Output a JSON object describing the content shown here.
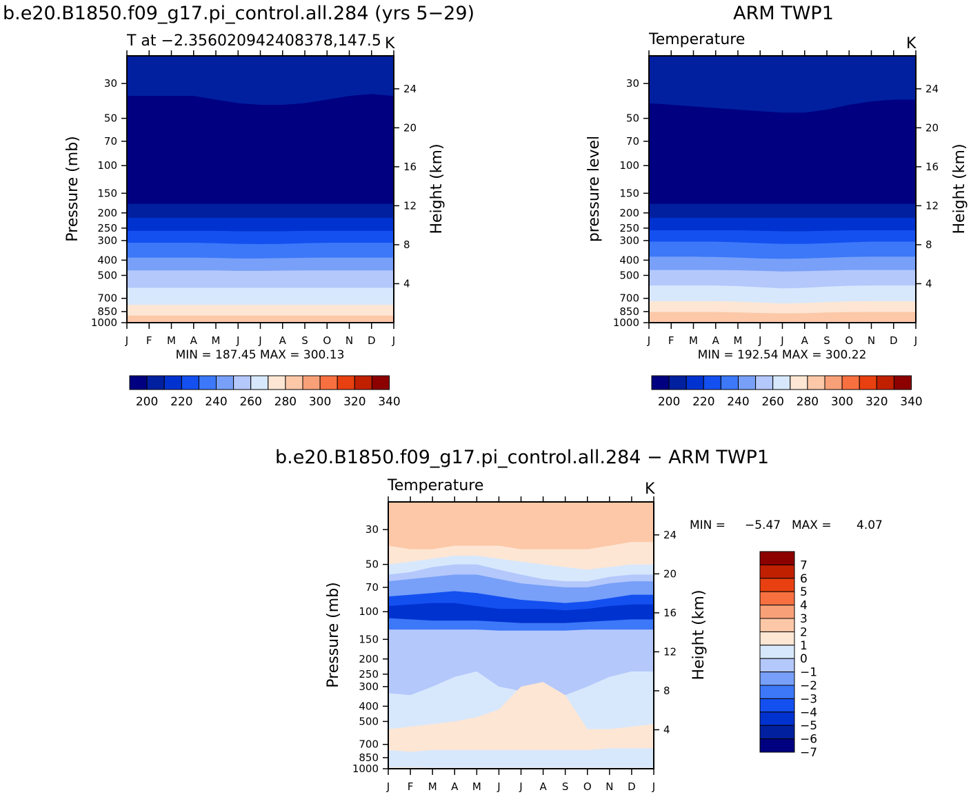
{
  "colors": [
    "#000080",
    "#0020a0",
    "#0032d0",
    "#1450f0",
    "#3c78f8",
    "#78a0f8",
    "#b4c8fc",
    "#d8e8fc",
    "#fde6d4",
    "#fcc8a8",
    "#f8a078",
    "#f87040",
    "#e84010",
    "#c02000",
    "#8c0000"
  ],
  "panels": [
    {
      "title": "b.e20.B1850.f09_g17.pi_control.all.284 (yrs 5−29)",
      "subtitle_left": "T at −2.356020942408378,147.5",
      "units": "K",
      "ylabel": "Pressure (mb)",
      "ylabel_right": "Height (km)",
      "stats": "MIN = 187.45 MAX = 300.13",
      "colorbar_labels": [
        "200",
        "220",
        "240",
        "260",
        "280",
        "300",
        "320",
        "340"
      ]
    },
    {
      "title": "ARM TWP1",
      "subtitle_left": "Temperature",
      "units": "K",
      "ylabel": "pressure level",
      "ylabel_right": "Height (km)",
      "stats": "MIN = 192.54 MAX = 300.22",
      "colorbar_labels": [
        "200",
        "220",
        "240",
        "260",
        "280",
        "300",
        "320",
        "340"
      ]
    },
    {
      "title": "b.e20.B1850.f09_g17.pi_control.all.284 − ARM TWP1",
      "subtitle_left": "Temperature",
      "units": "K",
      "ylabel": "Pressure (mb)",
      "ylabel_right": "Height (km)",
      "stats_min_label": "MIN =",
      "stats_min": "−5.47",
      "stats_max_label": "MAX =",
      "stats_max": "4.07",
      "colorbar_labels": [
        "7",
        "6",
        "5",
        "4",
        "3",
        "2",
        "1",
        "0",
        "−1",
        "−2",
        "−3",
        "−4",
        "−5",
        "−6",
        "−7"
      ]
    }
  ],
  "chart_data": [
    {
      "type": "heatmap",
      "title": "b.e20.B1850.f09_g17.pi_control.all.284 (yrs 5−29)",
      "x_tick_labels": [
        "J",
        "F",
        "M",
        "A",
        "M",
        "J",
        "J",
        "A",
        "S",
        "O",
        "N",
        "D",
        "J"
      ],
      "y_tick_labels": [
        "30",
        "50",
        "70",
        "100",
        "150",
        "200",
        "250",
        "300",
        "400",
        "500",
        "700",
        "850",
        "1000"
      ],
      "y_right_tick_labels": [
        "24",
        "20",
        "16",
        "12",
        "8",
        "4"
      ],
      "ylim": [
        1000,
        20
      ],
      "y_scale": "log",
      "min": 187.45,
      "max": 300.13,
      "levels": [
        200,
        210,
        220,
        230,
        240,
        250,
        260,
        270,
        280,
        290,
        300,
        310,
        320,
        330,
        340
      ],
      "bands": [
        {
          "value": 205,
          "upper_boundary_mb": [
            20,
            20,
            20,
            20,
            20,
            20,
            20,
            20,
            20,
            20,
            20,
            20,
            20
          ]
        },
        {
          "value": 195,
          "upper_boundary_mb": [
            36,
            36,
            36,
            36,
            38,
            40,
            41,
            41,
            40,
            38,
            36,
            35,
            36
          ]
        },
        {
          "value": 185,
          "upper_boundary_mb": [
            60,
            60,
            61,
            62,
            64,
            67,
            70,
            70,
            68,
            65,
            62,
            60,
            60
          ]
        },
        {
          "value": 195,
          "upper_boundary_mb": [
            140,
            140,
            140,
            140,
            140,
            140,
            140,
            140,
            140,
            140,
            140,
            140,
            140
          ]
        },
        {
          "value": 205,
          "upper_boundary_mb": [
            175,
            175,
            175,
            175,
            175,
            175,
            175,
            175,
            175,
            175,
            175,
            175,
            175
          ]
        },
        {
          "value": 215,
          "upper_boundary_mb": [
            215,
            215,
            215,
            215,
            215,
            215,
            215,
            215,
            215,
            215,
            215,
            215,
            215
          ]
        },
        {
          "value": 225,
          "upper_boundary_mb": [
            260,
            260,
            260,
            260,
            260,
            262,
            262,
            262,
            260,
            260,
            260,
            260,
            260
          ]
        },
        {
          "value": 235,
          "upper_boundary_mb": [
            310,
            310,
            310,
            310,
            312,
            315,
            316,
            315,
            312,
            310,
            310,
            310,
            310
          ]
        },
        {
          "value": 245,
          "upper_boundary_mb": [
            385,
            385,
            385,
            385,
            387,
            390,
            390,
            388,
            386,
            385,
            385,
            385,
            385
          ]
        },
        {
          "value": 255,
          "upper_boundary_mb": [
            465,
            465,
            465,
            465,
            465,
            468,
            468,
            466,
            465,
            465,
            465,
            465,
            465
          ]
        },
        {
          "value": 265,
          "upper_boundary_mb": [
            600,
            600,
            600,
            600,
            600,
            600,
            600,
            600,
            600,
            600,
            600,
            600,
            600
          ]
        },
        {
          "value": 275,
          "upper_boundary_mb": [
            770,
            770,
            770,
            770,
            770,
            770,
            770,
            770,
            770,
            770,
            770,
            770,
            770
          ]
        },
        {
          "value": 285,
          "upper_boundary_mb": [
            900,
            900,
            900,
            900,
            900,
            900,
            900,
            900,
            900,
            900,
            900,
            900,
            900
          ]
        }
      ]
    },
    {
      "type": "heatmap",
      "title": "ARM TWP1",
      "x_tick_labels": [
        "J",
        "F",
        "M",
        "A",
        "M",
        "J",
        "J",
        "A",
        "S",
        "O",
        "N",
        "D",
        "J"
      ],
      "y_tick_labels": [
        "30",
        "50",
        "70",
        "100",
        "150",
        "200",
        "250",
        "300",
        "400",
        "500",
        "700",
        "850",
        "1000"
      ],
      "y_right_tick_labels": [
        "24",
        "20",
        "16",
        "12",
        "8",
        "4"
      ],
      "ylim": [
        1000,
        20
      ],
      "y_scale": "log",
      "min": 192.54,
      "max": 300.22,
      "levels": [
        200,
        210,
        220,
        230,
        240,
        250,
        260,
        270,
        280,
        290,
        300,
        310,
        320,
        330,
        340
      ],
      "bands": [
        {
          "value": 205,
          "upper_boundary_mb": [
            20,
            20,
            20,
            20,
            20,
            20,
            20,
            20,
            20,
            20,
            20,
            20,
            20
          ]
        },
        {
          "value": 195,
          "upper_boundary_mb": [
            40,
            41,
            42,
            43,
            44,
            45,
            46,
            46,
            44,
            41,
            39,
            38,
            38
          ]
        },
        {
          "value": 185,
          "upper_boundary_mb": [
            63,
            64,
            65,
            66,
            67,
            70,
            76,
            82,
            76,
            68,
            64,
            62,
            62
          ]
        },
        {
          "value": 195,
          "upper_boundary_mb": [
            140,
            140,
            140,
            140,
            140,
            140,
            142,
            142,
            140,
            140,
            140,
            140,
            140
          ]
        },
        {
          "value": 205,
          "upper_boundary_mb": [
            175,
            175,
            175,
            175,
            175,
            175,
            175,
            175,
            175,
            175,
            175,
            175,
            175
          ]
        },
        {
          "value": 215,
          "upper_boundary_mb": [
            215,
            215,
            215,
            215,
            215,
            215,
            215,
            215,
            215,
            215,
            215,
            215,
            215
          ]
        },
        {
          "value": 225,
          "upper_boundary_mb": [
            258,
            258,
            258,
            258,
            258,
            260,
            262,
            262,
            260,
            258,
            258,
            258,
            258
          ]
        },
        {
          "value": 235,
          "upper_boundary_mb": [
            305,
            305,
            305,
            305,
            308,
            312,
            315,
            315,
            312,
            308,
            305,
            305,
            305
          ]
        },
        {
          "value": 245,
          "upper_boundary_mb": [
            380,
            380,
            380,
            382,
            385,
            390,
            392,
            390,
            386,
            382,
            380,
            380,
            380
          ]
        },
        {
          "value": 255,
          "upper_boundary_mb": [
            462,
            462,
            462,
            462,
            464,
            468,
            472,
            470,
            466,
            462,
            462,
            462,
            462
          ]
        },
        {
          "value": 265,
          "upper_boundary_mb": [
            580,
            580,
            580,
            580,
            585,
            595,
            605,
            600,
            590,
            582,
            580,
            580,
            580
          ]
        },
        {
          "value": 275,
          "upper_boundary_mb": [
            730,
            730,
            730,
            730,
            735,
            745,
            755,
            750,
            740,
            732,
            730,
            730,
            730
          ]
        },
        {
          "value": 285,
          "upper_boundary_mb": [
            855,
            855,
            855,
            855,
            860,
            868,
            872,
            870,
            862,
            856,
            855,
            855,
            855
          ]
        }
      ]
    },
    {
      "type": "heatmap",
      "title": "b.e20.B1850.f09_g17.pi_control.all.284 − ARM TWP1",
      "x_tick_labels": [
        "J",
        "F",
        "M",
        "A",
        "M",
        "J",
        "J",
        "A",
        "S",
        "O",
        "N",
        "D",
        "J"
      ],
      "y_tick_labels": [
        "30",
        "50",
        "70",
        "100",
        "150",
        "200",
        "250",
        "300",
        "400",
        "500",
        "700",
        "850",
        "1000"
      ],
      "y_right_tick_labels": [
        "24",
        "20",
        "16",
        "12",
        "8",
        "4"
      ],
      "ylim": [
        1000,
        20
      ],
      "y_scale": "log",
      "min": -5.47,
      "max": 4.07,
      "levels": [
        -7,
        -6,
        -5,
        -4,
        -3,
        -2,
        -1,
        0,
        1,
        2,
        3,
        4,
        5,
        6,
        7
      ],
      "bands": [
        {
          "value": 1.5,
          "upper_boundary_mb": [
            20,
            20,
            20,
            20,
            20,
            20,
            20,
            20,
            20,
            20,
            20,
            20,
            20
          ]
        },
        {
          "value": 0.5,
          "upper_boundary_mb": [
            38,
            40,
            40,
            38,
            38,
            38,
            40,
            40,
            40,
            40,
            38,
            36,
            36
          ]
        },
        {
          "value": -0.5,
          "upper_boundary_mb": [
            50,
            48,
            46,
            44,
            44,
            46,
            48,
            50,
            52,
            54,
            52,
            50,
            50
          ]
        },
        {
          "value": -1.5,
          "upper_boundary_mb": [
            58,
            56,
            52,
            50,
            50,
            54,
            58,
            62,
            64,
            64,
            60,
            58,
            58
          ]
        },
        {
          "value": -3.0,
          "upper_boundary_mb": [
            64,
            62,
            60,
            58,
            58,
            62,
            66,
            68,
            70,
            70,
            66,
            64,
            64
          ]
        },
        {
          "value": -4.5,
          "upper_boundary_mb": [
            80,
            78,
            76,
            74,
            76,
            80,
            84,
            86,
            88,
            86,
            82,
            78,
            78
          ]
        },
        {
          "value": -5.5,
          "upper_boundary_mb": [
            92,
            90,
            88,
            88,
            92,
            96,
            96,
            96,
            98,
            96,
            92,
            90,
            90
          ]
        },
        {
          "value": -3.5,
          "upper_boundary_mb": [
            110,
            112,
            114,
            114,
            114,
            116,
            118,
            118,
            118,
            116,
            114,
            112,
            112
          ]
        },
        {
          "value": -1.5,
          "upper_boundary_mb": [
            130,
            130,
            130,
            130,
            130,
            132,
            132,
            132,
            132,
            130,
            130,
            130,
            130
          ]
        },
        {
          "value": -0.5,
          "upper_boundary_mb": [
            330,
            340,
            300,
            260,
            240,
            300,
            320,
            330,
            340,
            300,
            260,
            240,
            240
          ]
        },
        {
          "value": 0.5,
          "upper_boundary_mb": [
            560,
            540,
            520,
            500,
            470,
            420,
            300,
            280,
            340,
            560,
            560,
            540,
            520
          ]
        },
        {
          "value": -0.5,
          "upper_boundary_mb": [
            760,
            780,
            760,
            760,
            760,
            760,
            760,
            760,
            760,
            760,
            740,
            740,
            740
          ]
        },
        {
          "value": 0.5,
          "upper_boundary_mb": [
            980,
            980,
            985,
            985,
            985,
            985,
            985,
            985,
            985,
            985,
            985,
            985,
            985
          ]
        }
      ]
    }
  ]
}
